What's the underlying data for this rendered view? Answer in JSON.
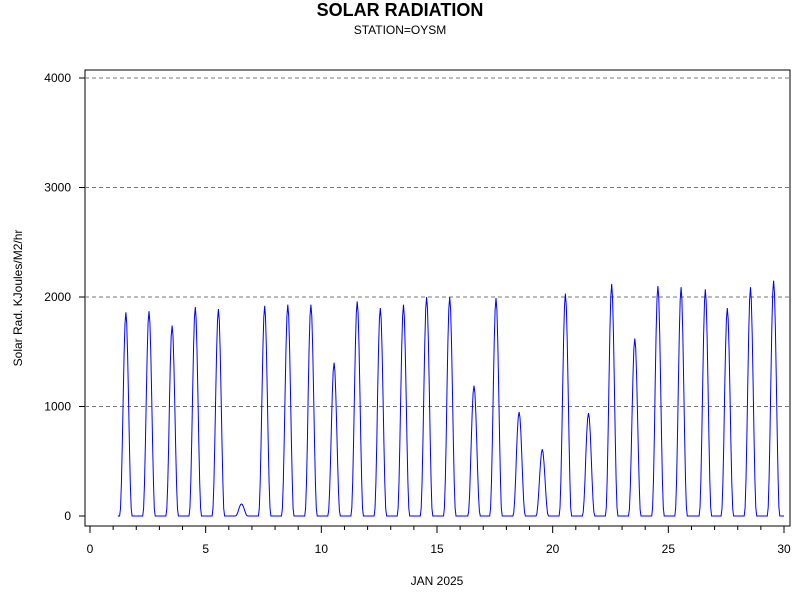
{
  "chart_data": {
    "type": "line",
    "title": "SOLAR RADIATION",
    "subtitle": "STATION=OYSM",
    "xlabel": "JAN 2025",
    "ylabel": "Solar Rad. KJoules/M2/hr",
    "xlim": [
      0,
      30
    ],
    "ylim": [
      0,
      4000
    ],
    "x_ticks": [
      0,
      5,
      10,
      15,
      20,
      25,
      30
    ],
    "y_ticks": [
      0,
      1000,
      2000,
      3000,
      4000
    ],
    "grid": "horizontal dashed",
    "line_color": "#0000ff",
    "series": [
      {
        "values_description_free": true,
        "daily_peaks": [
          {
            "day": 1.55,
            "peak": 1860
          },
          {
            "day": 2.55,
            "peak": 1870
          },
          {
            "day": 3.55,
            "peak": 1740
          },
          {
            "day": 4.55,
            "peak": 1910
          },
          {
            "day": 5.55,
            "peak": 1890
          },
          {
            "day": 6.55,
            "peak": 110
          },
          {
            "day": 7.55,
            "peak": 1920
          },
          {
            "day": 8.55,
            "peak": 1930
          },
          {
            "day": 9.55,
            "peak": 1930
          },
          {
            "day": 10.55,
            "peak": 1400
          },
          {
            "day": 11.55,
            "peak": 1960
          },
          {
            "day": 12.55,
            "peak": 1900
          },
          {
            "day": 13.55,
            "peak": 1930
          },
          {
            "day": 14.55,
            "peak": 2000
          },
          {
            "day": 15.55,
            "peak": 2000
          },
          {
            "day": 16.6,
            "peak": 1190
          },
          {
            "day": 17.55,
            "peak": 1990
          },
          {
            "day": 18.55,
            "peak": 950
          },
          {
            "day": 19.55,
            "peak": 610
          },
          {
            "day": 20.55,
            "peak": 2030
          },
          {
            "day": 21.55,
            "peak": 940
          },
          {
            "day": 22.55,
            "peak": 2120
          },
          {
            "day": 23.55,
            "peak": 1620
          },
          {
            "day": 24.55,
            "peak": 2100
          },
          {
            "day": 25.55,
            "peak": 2090
          },
          {
            "day": 26.6,
            "peak": 2070
          },
          {
            "day": 27.55,
            "peak": 1900
          },
          {
            "day": 28.55,
            "peak": 2090
          },
          {
            "day": 29.55,
            "peak": 2150
          }
        ]
      }
    ]
  }
}
